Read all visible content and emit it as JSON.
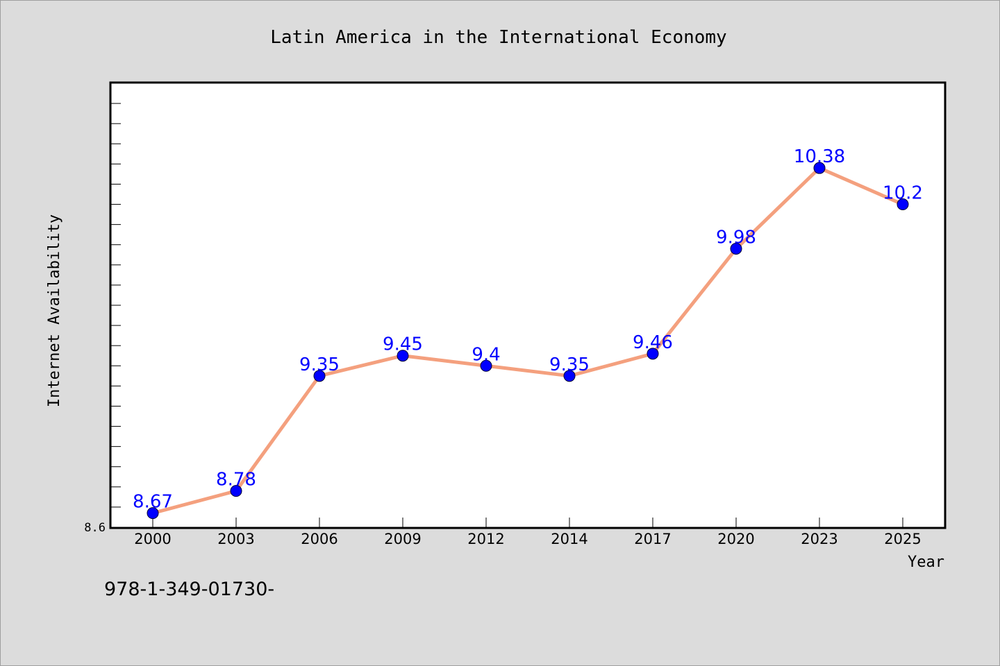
{
  "chart_data": {
    "type": "line",
    "title": "Latin America in the International Economy",
    "xlabel": "Year",
    "ylabel": "Internet Availability",
    "categories": [
      "2000",
      "2003",
      "2006",
      "2009",
      "2012",
      "2014",
      "2017",
      "2020",
      "2023",
      "2025"
    ],
    "series": [
      {
        "values": [
          8.67,
          8.78,
          9.35,
          9.45,
          9.4,
          9.35,
          9.46,
          9.98,
          10.38,
          10.2
        ],
        "labels": [
          "8.67",
          "8.78",
          "9.35",
          "9.45",
          "9.4",
          "9.35",
          "9.46",
          "9.98",
          "10.38",
          "10.2"
        ],
        "line_color": "#f4a07e",
        "marker_color": "#0000ff",
        "label_color": "#0000ff"
      }
    ],
    "ylim": [
      8.6,
      10.8
    ],
    "y_tick_labels": [
      "8.6"
    ],
    "grid": false,
    "legend": "none",
    "background": "#dcdcdc",
    "plot_background": "#ffffff"
  },
  "footer": {
    "text": "978-1-349-01730-"
  }
}
